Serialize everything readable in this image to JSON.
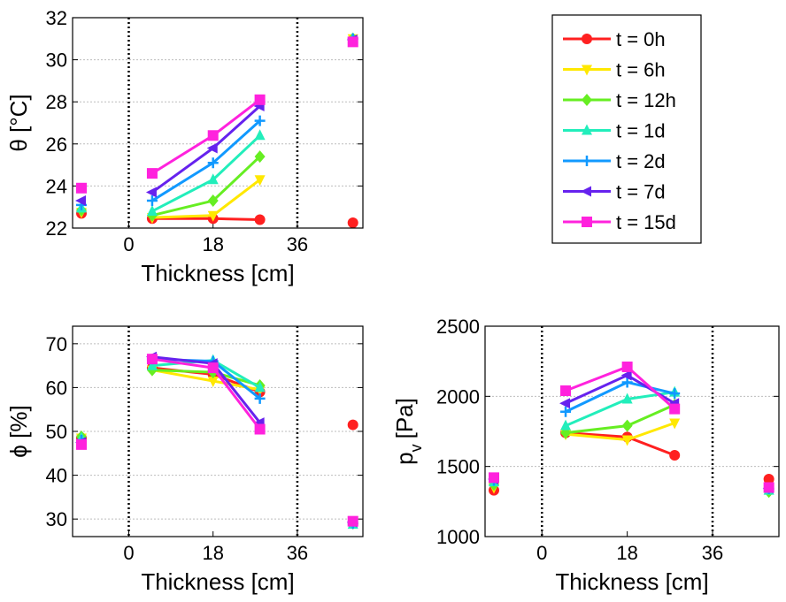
{
  "legend": [
    {
      "label": "t = 0h",
      "color": "#ff2020",
      "marker": "circle"
    },
    {
      "label": "t = 6h",
      "color": "#ffe800",
      "marker": "triangle-down"
    },
    {
      "label": "t = 12h",
      "color": "#66ee22",
      "marker": "diamond"
    },
    {
      "label": "t = 1d",
      "color": "#22eebb",
      "marker": "triangle-up"
    },
    {
      "label": "t = 2d",
      "color": "#1199ff",
      "marker": "plus"
    },
    {
      "label": "t = 7d",
      "color": "#6622ee",
      "marker": "triangle-left"
    },
    {
      "label": "t = 15d",
      "color": "#ff22dd",
      "marker": "square"
    }
  ],
  "chart_data": [
    {
      "type": "line",
      "id": "temperature",
      "ylabel": "θ [°C]",
      "xlabel": "Thickness [cm]",
      "xlim": [
        -12,
        50
      ],
      "ylim": [
        22,
        32
      ],
      "xticks": [
        0,
        18,
        36
      ],
      "yticks": [
        22,
        24,
        26,
        28,
        30,
        32
      ],
      "dividers": [
        0,
        36
      ],
      "x": [
        5,
        18,
        28
      ],
      "left_x": -12,
      "right_x": 49,
      "series": [
        {
          "name": "t = 0h",
          "values": [
            22.45,
            22.45,
            22.4
          ],
          "left": 22.7,
          "right": 22.25
        },
        {
          "name": "t = 6h",
          "values": [
            22.5,
            22.6,
            24.3
          ],
          "left": 22.75,
          "right": 31.0
        },
        {
          "name": "t = 12h",
          "values": [
            22.6,
            23.3,
            25.4
          ],
          "left": 22.85,
          "right": 31.0
        },
        {
          "name": "t = 1d",
          "values": [
            22.8,
            24.3,
            26.4
          ],
          "left": 22.95,
          "right": 31.0
        },
        {
          "name": "t = 2d",
          "values": [
            23.3,
            25.1,
            27.1
          ],
          "left": 23.1,
          "right": 31.0
        },
        {
          "name": "t = 7d",
          "values": [
            23.7,
            25.8,
            27.8
          ],
          "left": 23.3,
          "right": 30.95
        },
        {
          "name": "t = 15d",
          "values": [
            24.6,
            26.4,
            28.1
          ],
          "left": 23.9,
          "right": 30.85
        }
      ]
    },
    {
      "type": "line",
      "id": "relative-humidity",
      "ylabel": "ϕ [%]",
      "xlabel": "Thickness [cm]",
      "xlim": [
        -12,
        50
      ],
      "ylim": [
        26,
        74
      ],
      "xticks": [
        0,
        18,
        36
      ],
      "yticks": [
        30,
        40,
        50,
        60,
        70
      ],
      "dividers": [
        0,
        36
      ],
      "x": [
        5,
        18,
        28
      ],
      "left_x": -12,
      "right_x": 49,
      "series": [
        {
          "name": "t = 0h",
          "values": [
            64.5,
            63.0,
            59.0
          ],
          "left": 48.5,
          "right": 51.5
        },
        {
          "name": "t = 6h",
          "values": [
            64.0,
            61.5,
            59.5
          ],
          "left": 48.5,
          "right": 29.5
        },
        {
          "name": "t = 12h",
          "values": [
            64.0,
            63.5,
            60.5
          ],
          "left": 48.8,
          "right": 29.0
        },
        {
          "name": "t = 1d",
          "values": [
            65.0,
            66.2,
            60.0
          ],
          "left": 48.5,
          "right": 28.8
        },
        {
          "name": "t = 2d",
          "values": [
            66.5,
            66.0,
            57.5
          ],
          "left": 48.0,
          "right": 29.0
        },
        {
          "name": "t = 7d",
          "values": [
            67.0,
            65.5,
            52.0
          ],
          "left": 47.5,
          "right": 29.3
        },
        {
          "name": "t = 15d",
          "values": [
            66.5,
            64.5,
            50.5
          ],
          "left": 47.0,
          "right": 29.5
        }
      ]
    },
    {
      "type": "line",
      "id": "vapour-pressure",
      "ylabel": "p",
      "ylabel_sub": "v",
      "ylabel_unit": "[Pa]",
      "xlabel": "Thickness [cm]",
      "xlim": [
        -12,
        50
      ],
      "ylim": [
        1000,
        2500
      ],
      "xticks": [
        0,
        18,
        36
      ],
      "yticks": [
        1000,
        1500,
        2000,
        2500
      ],
      "dividers": [
        0,
        36
      ],
      "x": [
        5,
        18,
        28
      ],
      "left_x": -12,
      "right_x": 49,
      "series": [
        {
          "name": "t = 0h",
          "values": [
            1740,
            1710,
            1580
          ],
          "left": 1330,
          "right": 1410
        },
        {
          "name": "t = 6h",
          "values": [
            1730,
            1690,
            1810
          ],
          "left": 1350,
          "right": 1330
        },
        {
          "name": "t = 12h",
          "values": [
            1740,
            1790,
            1940
          ],
          "left": 1370,
          "right": 1320
        },
        {
          "name": "t = 1d",
          "values": [
            1790,
            1980,
            2030
          ],
          "left": 1390,
          "right": 1330
        },
        {
          "name": "t = 2d",
          "values": [
            1890,
            2100,
            2020
          ],
          "left": 1400,
          "right": 1340
        },
        {
          "name": "t = 7d",
          "values": [
            1950,
            2150,
            1950
          ],
          "left": 1410,
          "right": 1345
        },
        {
          "name": "t = 15d",
          "values": [
            2040,
            2210,
            1910
          ],
          "left": 1420,
          "right": 1350
        }
      ]
    }
  ]
}
